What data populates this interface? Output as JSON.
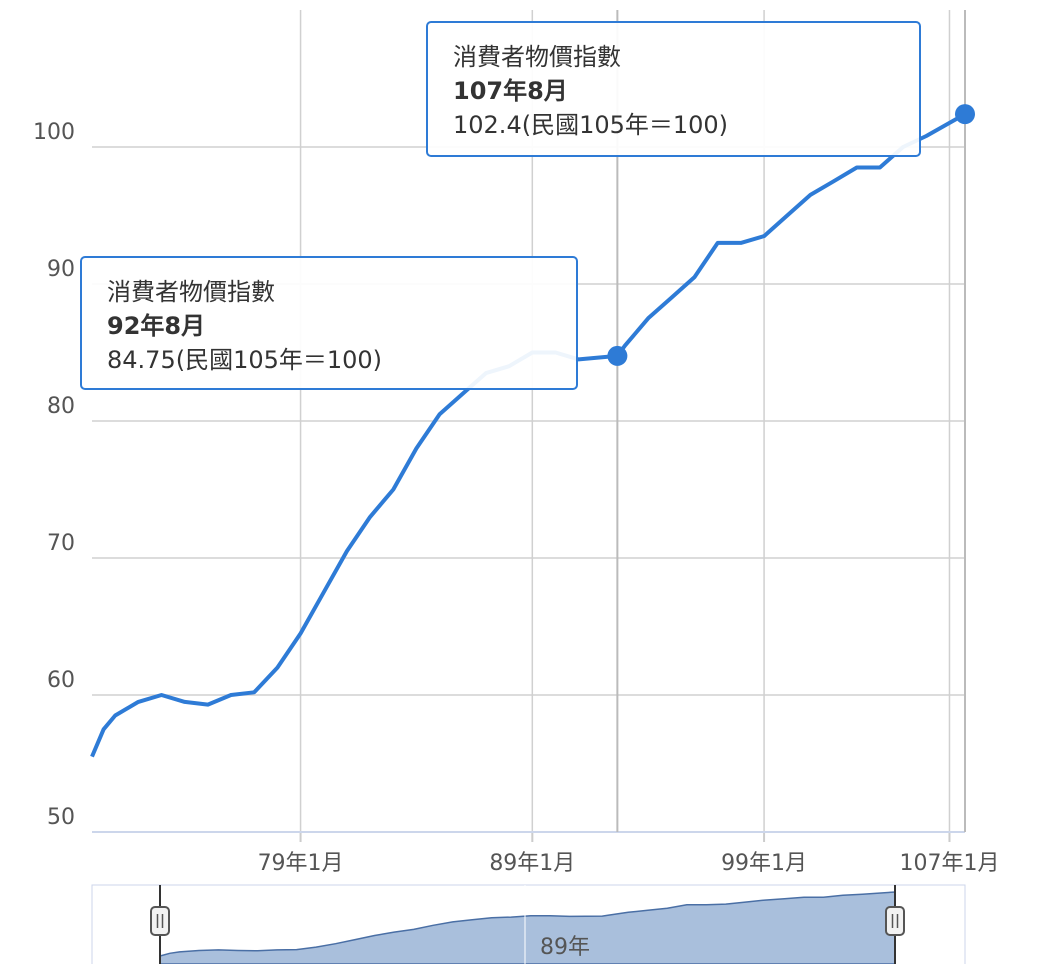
{
  "chart_data": {
    "type": "line",
    "x": [
      70,
      70.5,
      71,
      72,
      73,
      74,
      75,
      76,
      77,
      78,
      79,
      80,
      81,
      82,
      83,
      84,
      85,
      86,
      87,
      88,
      89,
      90,
      91,
      92.67,
      93,
      94,
      95,
      96,
      97,
      98,
      99,
      100,
      101,
      102,
      103,
      104,
      105,
      106,
      107.67
    ],
    "series": [
      {
        "name": "消費者物價指數",
        "color": "#2e7bd6",
        "values": [
          55.5,
          57.5,
          58.5,
          59.5,
          60.0,
          59.5,
          59.3,
          60.0,
          60.2,
          62.0,
          64.5,
          67.5,
          70.5,
          73.0,
          75.0,
          78.0,
          80.5,
          82.0,
          83.5,
          84.0,
          85.0,
          85.0,
          84.5,
          84.75,
          85.5,
          87.5,
          89.0,
          90.5,
          93.0,
          93.0,
          93.5,
          95.0,
          96.5,
          97.5,
          98.5,
          98.5,
          100.0,
          100.8,
          102.4
        ]
      }
    ],
    "xlim": [
      70,
      107.67
    ],
    "xticks": [
      {
        "value": 79,
        "label": "79年1月"
      },
      {
        "value": 89,
        "label": "89年1月"
      },
      {
        "value": 99,
        "label": "99年1月"
      },
      {
        "value": 107,
        "label": "107年1月"
      }
    ],
    "ylim": [
      50,
      110
    ],
    "yticks": [
      50,
      60,
      70,
      80,
      90,
      100
    ],
    "grid": true,
    "tooltips": [
      {
        "x": 92.67,
        "value": 84.75,
        "series": "消費者物價指數",
        "date": "92年8月",
        "label": "84.75(民國105年＝100)"
      },
      {
        "x": 107.67,
        "value": 102.4,
        "series": "消費者物價指數",
        "date": "107年8月",
        "label": "102.4(民國105年＝100)"
      }
    ],
    "navigator_label": "89年"
  }
}
